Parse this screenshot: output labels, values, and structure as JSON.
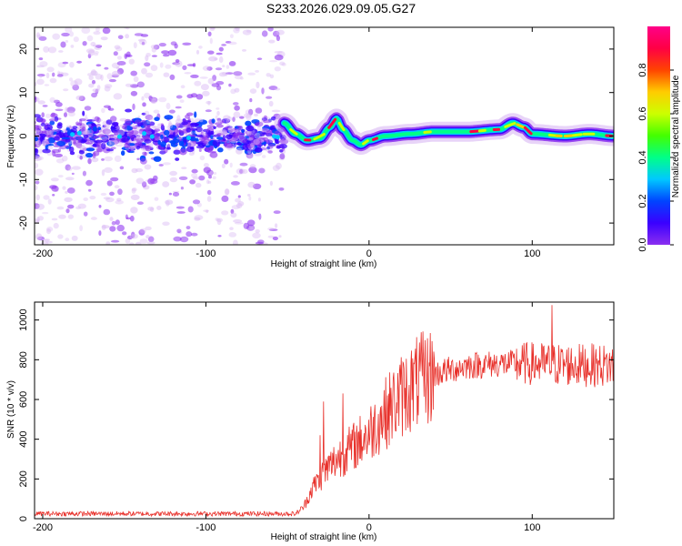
{
  "title": "S233.2026.029.09.05.G27",
  "colors": {
    "snr_line": "#e8302a",
    "rainbow": [
      "#ffffff",
      "#d9b8f4",
      "#8b2ff0",
      "#3a00ff",
      "#0044ff",
      "#00c8ff",
      "#00ff88",
      "#44ff00",
      "#ccff00",
      "#ffcc00",
      "#ff4400",
      "#ff0044",
      "#ff0088"
    ]
  },
  "chart_data": [
    {
      "type": "heatmap",
      "title": "",
      "xlabel": "Height of straight line (km)",
      "ylabel": "Frequency (Hz)",
      "xlim": [
        -205,
        150
      ],
      "ylim": [
        -25,
        25
      ],
      "xticks": [
        -200,
        -100,
        0,
        100
      ],
      "yticks": [
        -20,
        -10,
        0,
        10,
        20
      ],
      "colorbar": {
        "label": "Normalized spectral amplitude",
        "range": [
          0,
          1
        ],
        "ticks": [
          "0.0",
          "0.2",
          "0.4",
          "0.6",
          "0.8"
        ]
      },
      "noise_region_x": [
        -205,
        -52
      ],
      "noise_spread_hz": 25,
      "track_points": [
        {
          "x": -52,
          "y": 3
        },
        {
          "x": -45,
          "y": 0.5
        },
        {
          "x": -38,
          "y": -1
        },
        {
          "x": -30,
          "y": -0.5
        },
        {
          "x": -24,
          "y": 2
        },
        {
          "x": -20,
          "y": 4
        },
        {
          "x": -16,
          "y": 1.5
        },
        {
          "x": -10,
          "y": -1
        },
        {
          "x": -5,
          "y": -2
        },
        {
          "x": 0,
          "y": -1
        },
        {
          "x": 10,
          "y": 0
        },
        {
          "x": 25,
          "y": 0.5
        },
        {
          "x": 40,
          "y": 1
        },
        {
          "x": 60,
          "y": 1
        },
        {
          "x": 80,
          "y": 1.5
        },
        {
          "x": 88,
          "y": 3
        },
        {
          "x": 95,
          "y": 2
        },
        {
          "x": 100,
          "y": 0.5
        },
        {
          "x": 120,
          "y": 0
        },
        {
          "x": 135,
          "y": 0.5
        },
        {
          "x": 150,
          "y": 0
        }
      ]
    },
    {
      "type": "line",
      "title": "",
      "xlabel": "Height of straight line (km)",
      "ylabel": "SNR (10 * v/v)",
      "xlim": [
        -205,
        150
      ],
      "ylim": [
        0,
        1090
      ],
      "xticks": [
        -200,
        -100,
        0,
        100
      ],
      "yticks": [
        0,
        200,
        400,
        600,
        800,
        1000
      ],
      "series": [
        {
          "mean_envelope": [
            {
              "x": -205,
              "y": 25
            },
            {
              "x": -45,
              "y": 25
            },
            {
              "x": -40,
              "y": 60
            },
            {
              "x": -35,
              "y": 150
            },
            {
              "x": -28,
              "y": 230
            },
            {
              "x": -20,
              "y": 300
            },
            {
              "x": -10,
              "y": 360
            },
            {
              "x": 0,
              "y": 430
            },
            {
              "x": 10,
              "y": 530
            },
            {
              "x": 20,
              "y": 620
            },
            {
              "x": 30,
              "y": 690
            },
            {
              "x": 45,
              "y": 740
            },
            {
              "x": 60,
              "y": 770
            },
            {
              "x": 80,
              "y": 780
            },
            {
              "x": 100,
              "y": 780
            },
            {
              "x": 120,
              "y": 775
            },
            {
              "x": 150,
              "y": 770
            }
          ],
          "spikes": [
            {
              "x": -30,
              "y": 420
            },
            {
              "x": -28,
              "y": 590
            },
            {
              "x": -16,
              "y": 630
            },
            {
              "x": 112,
              "y": 1075
            }
          ]
        }
      ]
    }
  ]
}
